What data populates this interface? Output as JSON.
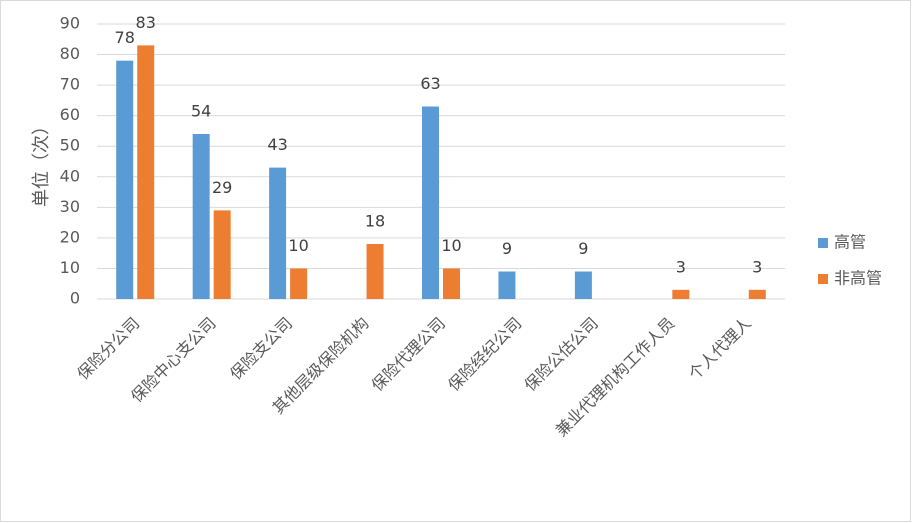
{
  "chart_data": {
    "type": "bar",
    "y_label": "单位（次）",
    "categories": [
      "保险分公司",
      "保险中心支公司",
      "保险支公司",
      "其他层级保险机构",
      "保险代理公司",
      "保险经纪公司",
      "保险公估公司",
      "兼业代理机构工作人员",
      "个人代理人"
    ],
    "series": [
      {
        "name": "高管",
        "color": "#5b9bd5",
        "values": [
          78,
          54,
          43,
          null,
          63,
          9,
          9,
          null,
          null
        ]
      },
      {
        "name": "非高管",
        "color": "#ed7d31",
        "values": [
          83,
          29,
          10,
          18,
          10,
          null,
          null,
          3,
          3
        ]
      }
    ],
    "ylim": [
      0,
      90
    ],
    "yticks": [
      0,
      10,
      20,
      30,
      40,
      50,
      60,
      70,
      80,
      90
    ],
    "grid": true,
    "legend": "right"
  }
}
